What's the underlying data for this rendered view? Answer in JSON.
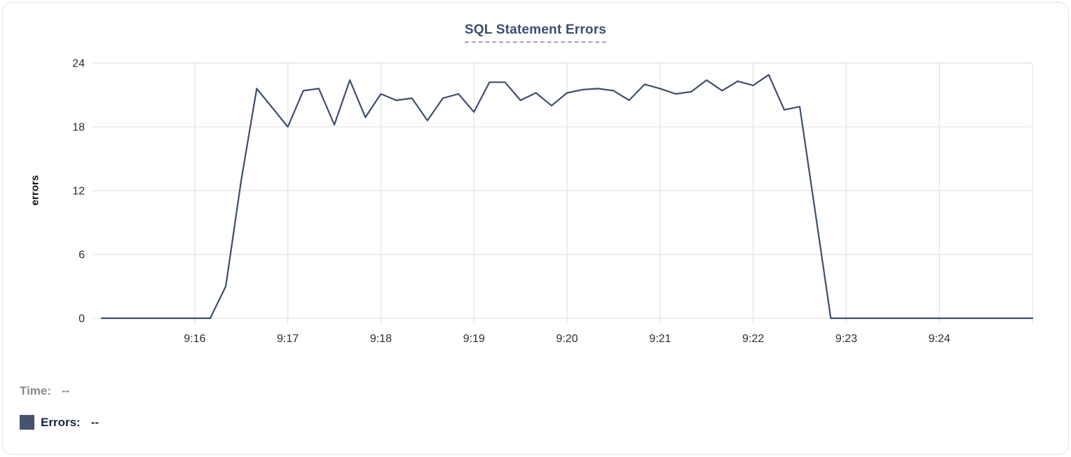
{
  "card": {
    "title": "SQL Statement Errors"
  },
  "chart_data": {
    "type": "line",
    "title": "SQL Statement Errors",
    "xlabel": "",
    "ylabel": "errors",
    "ylim": [
      0,
      24
    ],
    "y_ticks": [
      0,
      6,
      12,
      18,
      24
    ],
    "grid": true,
    "legend_position": "bottom-left",
    "x_domain": [
      "9:15:00",
      "9:25:00"
    ],
    "x_ticks": [
      {
        "label": "9:16",
        "f": 0.1
      },
      {
        "label": "9:17",
        "f": 0.2
      },
      {
        "label": "9:18",
        "f": 0.3
      },
      {
        "label": "9:19",
        "f": 0.4
      },
      {
        "label": "9:20",
        "f": 0.5
      },
      {
        "label": "9:21",
        "f": 0.6
      },
      {
        "label": "9:22",
        "f": 0.7
      },
      {
        "label": "9:23",
        "f": 0.8
      },
      {
        "label": "9:24",
        "f": 0.9
      },
      {
        "label": "",
        "f": 1.0
      }
    ],
    "series": [
      {
        "name": "Errors",
        "color": "#3f4e6d",
        "times": [
          "9:15:00",
          "9:15:10",
          "9:15:20",
          "9:15:30",
          "9:15:40",
          "9:15:50",
          "9:16:00",
          "9:16:10",
          "9:16:20",
          "9:16:30",
          "9:16:40",
          "9:16:50",
          "9:17:00",
          "9:17:10",
          "9:17:20",
          "9:17:30",
          "9:17:40",
          "9:17:50",
          "9:18:00",
          "9:18:10",
          "9:18:20",
          "9:18:30",
          "9:18:40",
          "9:18:50",
          "9:19:00",
          "9:19:10",
          "9:19:20",
          "9:19:30",
          "9:19:40",
          "9:19:50",
          "9:20:00",
          "9:20:10",
          "9:20:20",
          "9:20:30",
          "9:20:40",
          "9:20:50",
          "9:21:00",
          "9:21:10",
          "9:21:20",
          "9:21:30",
          "9:21:40",
          "9:21:50",
          "9:22:00",
          "9:22:10",
          "9:22:20",
          "9:22:30",
          "9:22:40",
          "9:22:50",
          "9:23:00",
          "9:23:10",
          "9:23:20",
          "9:23:30",
          "9:23:40",
          "9:23:50",
          "9:24:00",
          "9:24:10",
          "9:24:20",
          "9:24:30",
          "9:24:40",
          "9:24:50",
          "9:25:00"
        ],
        "values": [
          0,
          0,
          0,
          0,
          0,
          0,
          0,
          0,
          3,
          13,
          21.6,
          19.8,
          18,
          21.4,
          21.6,
          18.2,
          22.4,
          18.9,
          21.1,
          20.5,
          20.7,
          18.6,
          20.7,
          21.1,
          19.4,
          22.2,
          22.2,
          20.5,
          21.2,
          20.0,
          21.2,
          21.5,
          21.6,
          21.4,
          20.5,
          22.0,
          21.6,
          21.1,
          21.3,
          22.4,
          21.4,
          22.3,
          21.9,
          22.9,
          19.6,
          19.9,
          10,
          0,
          0,
          0,
          0,
          0,
          0,
          0,
          0,
          0,
          0,
          0,
          0,
          0,
          0
        ]
      }
    ]
  },
  "tooltip": {
    "time_label": "Time:",
    "time_value": "--",
    "errors_label": "Errors:",
    "errors_value": "--"
  },
  "colors": {
    "line": "#3f4e6d",
    "legend_swatch": "#44536e",
    "title": "#3c4e74",
    "title_underline": "#9aa6c3",
    "grid": "#e9e9e9",
    "tick_label": "#2d2d2d",
    "axis_title": "#111111",
    "time_text": "#8a8a8a",
    "errors_text": "#1c2547",
    "card_border": "#e2e2e2"
  }
}
